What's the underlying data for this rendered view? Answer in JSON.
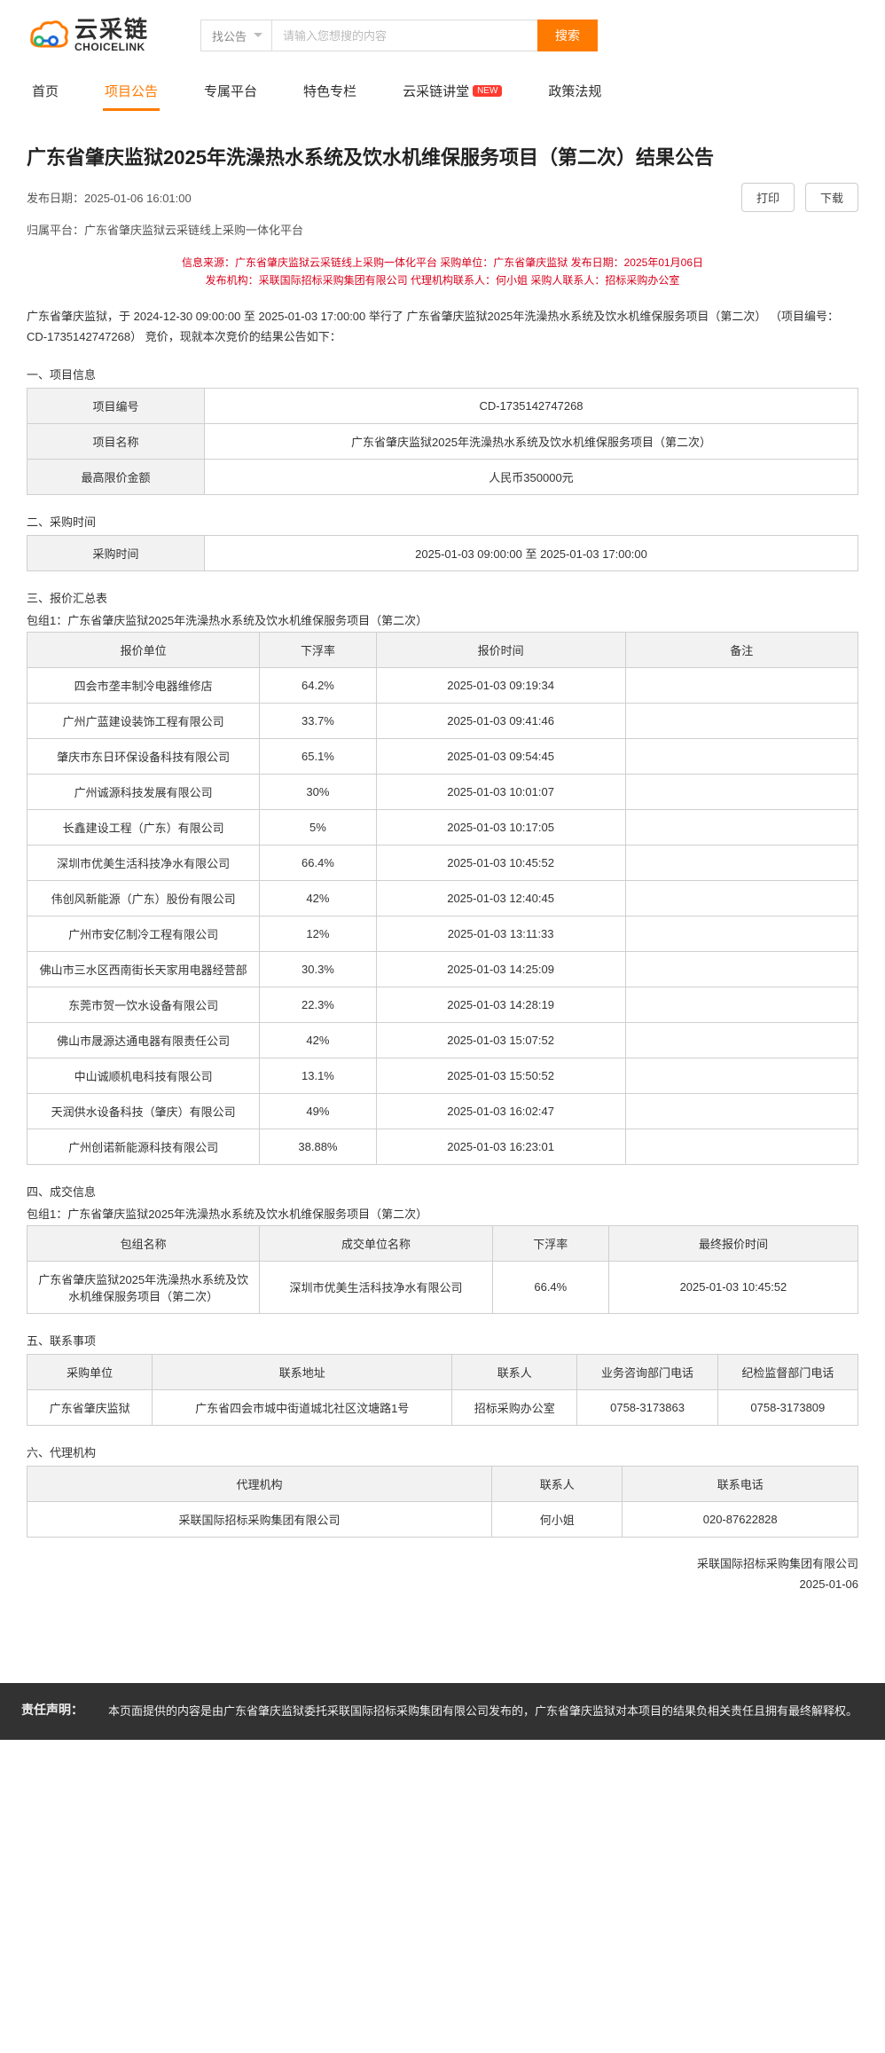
{
  "brand": {
    "cn": "云采链",
    "en": "CHOICELINK"
  },
  "search": {
    "cat": "找公告",
    "placeholder": "请输入您想搜的内容",
    "btn": "搜索"
  },
  "nav": [
    {
      "label": "首页",
      "active": false
    },
    {
      "label": "项目公告",
      "active": true
    },
    {
      "label": "专属平台",
      "active": false
    },
    {
      "label": "特色专栏",
      "active": false
    },
    {
      "label": "云采链讲堂",
      "active": false,
      "badge": "NEW"
    },
    {
      "label": "政策法规",
      "active": false
    }
  ],
  "title": "广东省肇庆监狱2025年洗澡热水系统及饮水机维保服务项目（第二次）结果公告",
  "pub_label": "发布日期：",
  "pub_date": "2025-01-06 16:01:00",
  "btn_print": "打印",
  "btn_download": "下载",
  "platform_label": "归属平台：",
  "platform_value": "广东省肇庆监狱云采链线上采购一体化平台",
  "red1": "信息来源：广东省肇庆监狱云采链线上采购一体化平台  采购单位：广东省肇庆监狱  发布日期：2025年01月06日",
  "red2": "发布机构：采联国际招标采购集团有限公司  代理机构联系人：何小姐  采购人联系人：招标采购办公室",
  "intro": "广东省肇庆监狱，于 2024-12-30 09:00:00 至 2025-01-03 17:00:00 举行了 广东省肇庆监狱2025年洗澡热水系统及饮水机维保服务项目（第二次） （项目编号：CD-1735142747268） 竞价，现就本次竞价的结果公告如下：",
  "sec1": {
    "h": "一、项目信息",
    "rows": [
      {
        "k": "项目编号",
        "v": "CD-1735142747268"
      },
      {
        "k": "项目名称",
        "v": "广东省肇庆监狱2025年洗澡热水系统及饮水机维保服务项目（第二次）"
      },
      {
        "k": "最高限价金额",
        "v": "人民币350000元"
      }
    ]
  },
  "sec2": {
    "h": "二、采购时间",
    "k": "采购时间",
    "v": "2025-01-03 09:00:00 至 2025-01-03 17:00:00"
  },
  "sec3": {
    "h": "三、报价汇总表",
    "sub": "包组1：广东省肇庆监狱2025年洗澡热水系统及饮水机维保服务项目（第二次）",
    "cols": [
      "报价单位",
      "下浮率",
      "报价时间",
      "备注"
    ],
    "rows": [
      [
        "四会市垄丰制冷电器维修店",
        "64.2%",
        "2025-01-03 09:19:34",
        ""
      ],
      [
        "广州广蓝建设装饰工程有限公司",
        "33.7%",
        "2025-01-03 09:41:46",
        ""
      ],
      [
        "肇庆市东日环保设备科技有限公司",
        "65.1%",
        "2025-01-03 09:54:45",
        ""
      ],
      [
        "广州诚源科技发展有限公司",
        "30%",
        "2025-01-03 10:01:07",
        ""
      ],
      [
        "长鑫建设工程（广东）有限公司",
        "5%",
        "2025-01-03 10:17:05",
        ""
      ],
      [
        "深圳市优美生活科技净水有限公司",
        "66.4%",
        "2025-01-03 10:45:52",
        ""
      ],
      [
        "伟创风新能源（广东）股份有限公司",
        "42%",
        "2025-01-03 12:40:45",
        ""
      ],
      [
        "广州市安亿制冷工程有限公司",
        "12%",
        "2025-01-03 13:11:33",
        ""
      ],
      [
        "佛山市三水区西南街长天家用电器经营部",
        "30.3%",
        "2025-01-03 14:25:09",
        ""
      ],
      [
        "东莞市贺一饮水设备有限公司",
        "22.3%",
        "2025-01-03 14:28:19",
        ""
      ],
      [
        "佛山市晟源达通电器有限责任公司",
        "42%",
        "2025-01-03 15:07:52",
        ""
      ],
      [
        "中山诚顺机电科技有限公司",
        "13.1%",
        "2025-01-03 15:50:52",
        ""
      ],
      [
        "天润供水设备科技（肇庆）有限公司",
        "49%",
        "2025-01-03 16:02:47",
        ""
      ],
      [
        "广州创诺新能源科技有限公司",
        "38.88%",
        "2025-01-03 16:23:01",
        ""
      ]
    ]
  },
  "sec4": {
    "h": "四、成交信息",
    "sub": "包组1：广东省肇庆监狱2025年洗澡热水系统及饮水机维保服务项目（第二次）",
    "cols": [
      "包组名称",
      "成交单位名称",
      "下浮率",
      "最终报价时间"
    ],
    "rows": [
      [
        "广东省肇庆监狱2025年洗澡热水系统及饮水机维保服务项目（第二次）",
        "深圳市优美生活科技净水有限公司",
        "66.4%",
        "2025-01-03 10:45:52"
      ]
    ]
  },
  "sec5": {
    "h": "五、联系事项",
    "cols": [
      "采购单位",
      "联系地址",
      "联系人",
      "业务咨询部门电话",
      "纪检监督部门电话"
    ],
    "rows": [
      [
        "广东省肇庆监狱",
        "广东省四会市城中街道城北社区汶塘路1号",
        "招标采购办公室",
        "0758-3173863",
        "0758-3173809"
      ]
    ]
  },
  "sec6": {
    "h": "六、代理机构",
    "cols": [
      "代理机构",
      "联系人",
      "联系电话"
    ],
    "rows": [
      [
        "采联国际招标采购集团有限公司",
        "何小姐",
        "020-87622828"
      ]
    ]
  },
  "sign": {
    "org": "采联国际招标采购集团有限公司",
    "date": "2025-01-06"
  },
  "disclaimer": {
    "title": "责任声明：",
    "text": "本页面提供的内容是由广东省肇庆监狱委托采联国际招标采购集团有限公司发布的，广东省肇庆监狱对本项目的结果负相关责任且拥有最终解释权。"
  },
  "colors": {
    "accent": "#ff7a00",
    "red": "#d9001b",
    "border": "#cfcfcf",
    "th_bg": "#f2f2f2",
    "footer_bg": "#323232"
  }
}
